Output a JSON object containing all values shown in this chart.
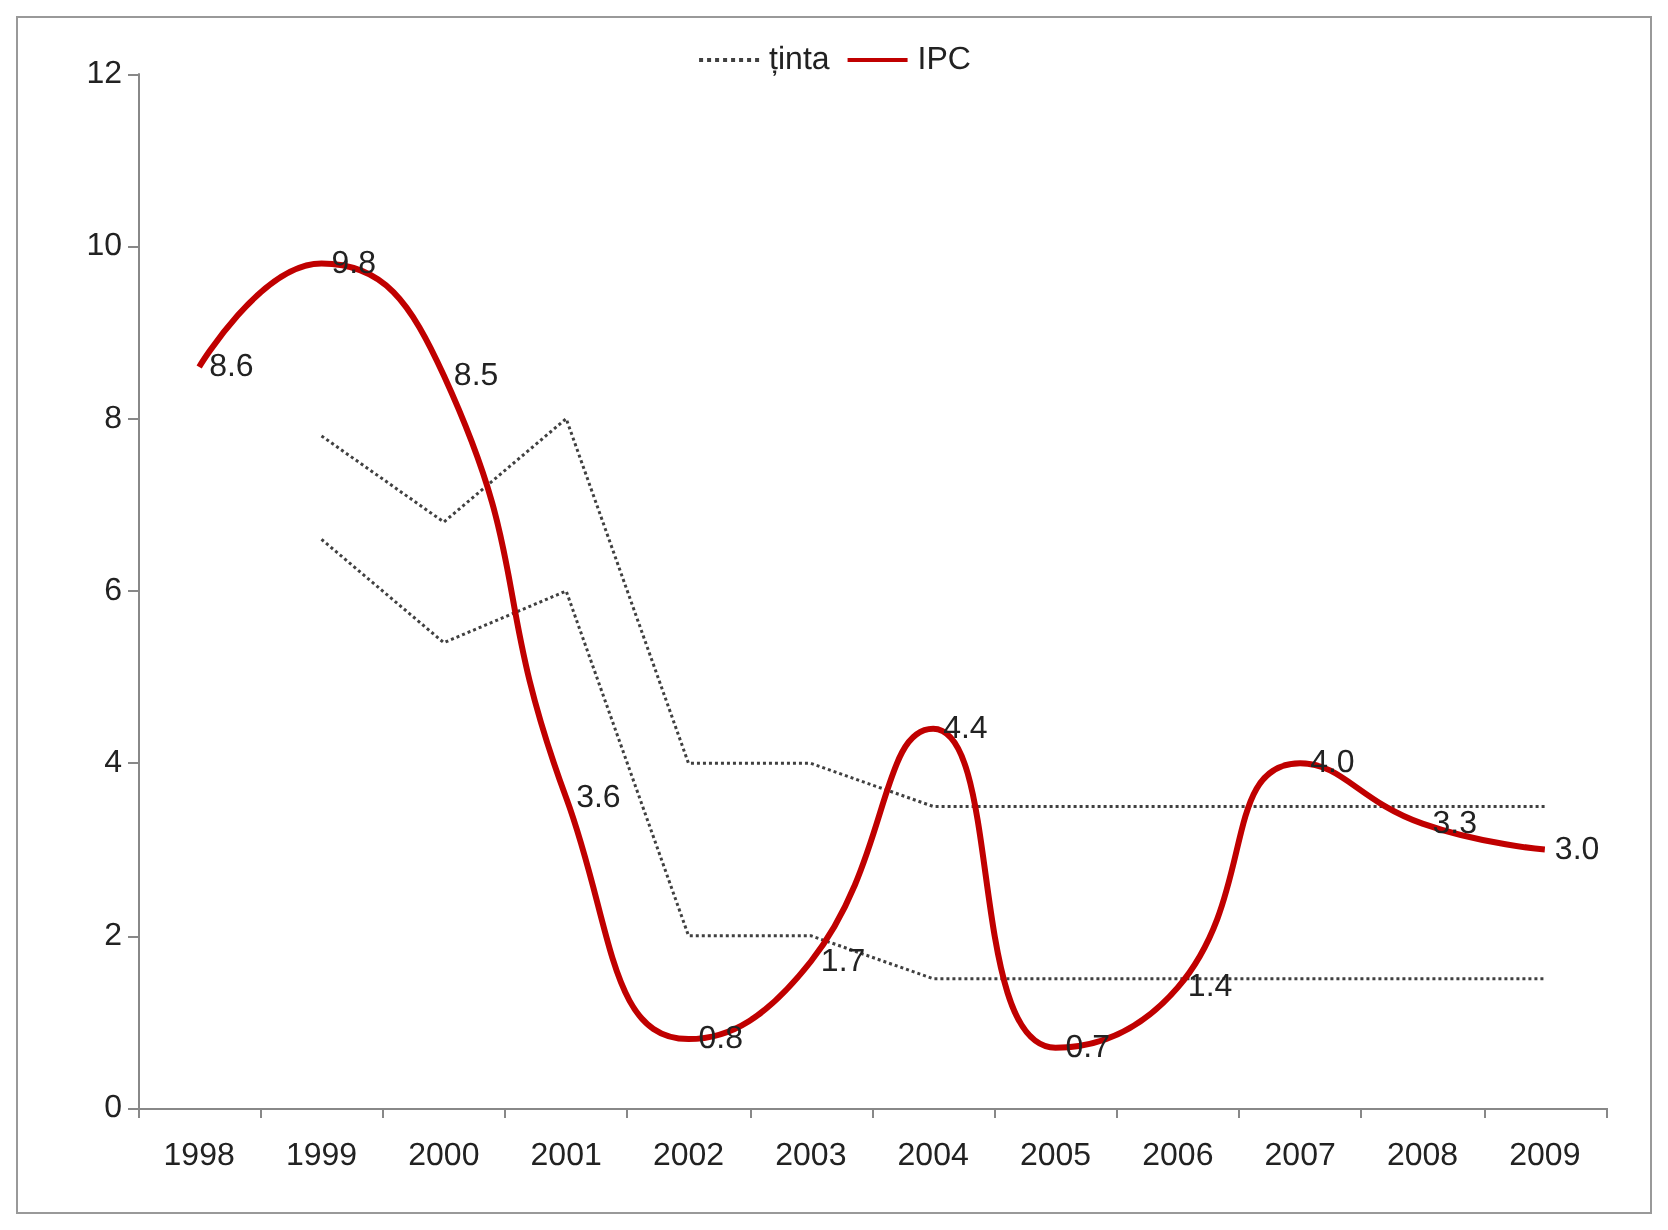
{
  "chart_data": {
    "type": "line",
    "categories": [
      "1998",
      "1999",
      "2000",
      "2001",
      "2002",
      "2003",
      "2004",
      "2005",
      "2006",
      "2007",
      "2008",
      "2009"
    ],
    "series": [
      {
        "name": "ținta",
        "color": "#404040",
        "line_style": "dotted",
        "values": [
          null,
          7.8,
          6.8,
          8.0,
          4.0,
          4.0,
          3.5,
          3.5,
          3.5,
          3.5,
          3.5,
          3.5
        ]
      },
      {
        "color": "#404040",
        "line_style": "dotted",
        "values": [
          null,
          6.6,
          5.4,
          6.0,
          2.0,
          2.0,
          1.5,
          1.5,
          1.5,
          1.5,
          1.5,
          1.5
        ]
      },
      {
        "name": "IPC",
        "color": "#c00000",
        "line_style": "solid",
        "values": [
          8.6,
          9.8,
          8.5,
          3.6,
          0.8,
          1.7,
          4.4,
          0.7,
          1.4,
          4.0,
          3.3,
          3.0
        ],
        "value_labels": [
          "8.6",
          "9.8",
          "8.5",
          "3.6",
          "0.8",
          "1.7",
          "4.4",
          "0.7",
          "1.4",
          "4.0",
          "3.3",
          "3.0"
        ]
      }
    ],
    "ylim": [
      0,
      12
    ],
    "yticks": [
      0,
      2,
      4,
      6,
      8,
      10,
      12
    ],
    "grid": false,
    "legend": "top",
    "marker": "none"
  }
}
